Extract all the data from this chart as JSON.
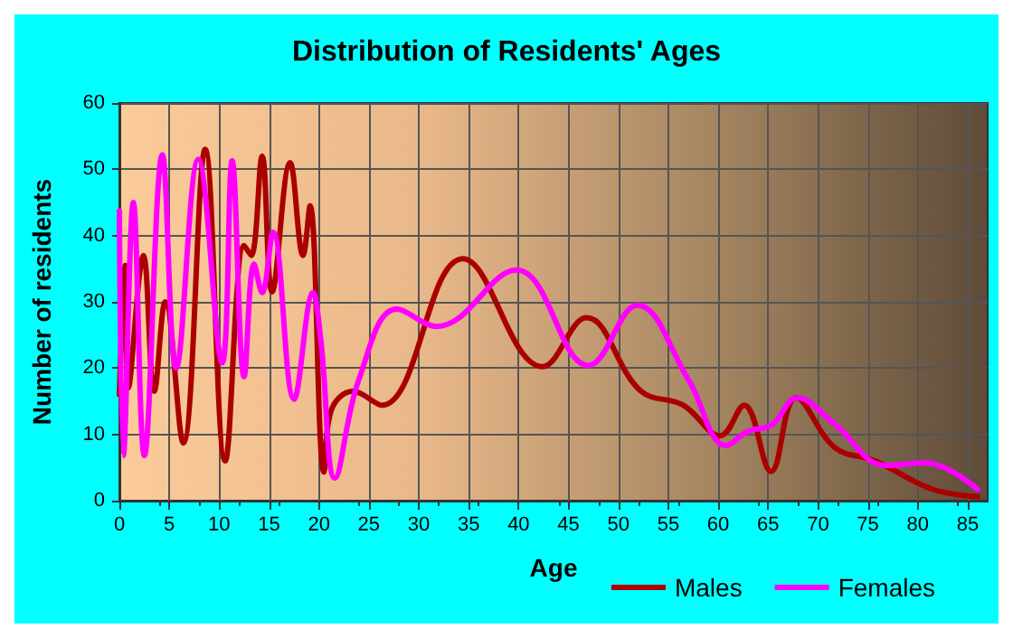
{
  "chart_data": {
    "type": "line",
    "title": "Distribution of Residents' Ages",
    "xlabel": "Age",
    "ylabel": "Number of residents",
    "xlim": [
      0,
      87
    ],
    "xticks": [
      0,
      5,
      10,
      15,
      20,
      25,
      30,
      35,
      40,
      45,
      50,
      55,
      60,
      65,
      70,
      75,
      80,
      85
    ],
    "ylim": [
      0,
      60
    ],
    "yticks": [
      0,
      10,
      20,
      30,
      40,
      50,
      60
    ],
    "grid": true,
    "legend": "bottom right",
    "marker": "none",
    "line_style": "solid",
    "series": [
      {
        "name": "Males",
        "color": "#aa0000",
        "x": [
          0,
          0.6,
          0.9,
          2.4,
          3.5,
          4.6,
          6.4,
          8.6,
          10.6,
          12.5,
          13.2,
          14.3,
          15.3,
          17.1,
          18.4,
          19.1,
          20.5,
          21.2,
          23.4,
          26.3,
          34.4,
          42.4,
          46.8,
          52.2,
          56.5,
          60.2,
          62.6,
          65.3,
          67.8,
          71.7,
          75.7,
          81.5,
          86
        ],
        "values": [
          16,
          35.5,
          17,
          37,
          16.5,
          30,
          8.7,
          53,
          6,
          38.5,
          37,
          52,
          31.5,
          51,
          37,
          44.5,
          4.3,
          13.5,
          16.5,
          14.4,
          36.5,
          20.2,
          27.6,
          16.6,
          14.4,
          9.8,
          14.4,
          4.4,
          15.5,
          8,
          6,
          1.7,
          0.6
        ]
      },
      {
        "name": "Females",
        "color": "#ff00ff",
        "x": [
          0,
          0.4,
          1.4,
          2.5,
          4.3,
          5.7,
          7.9,
          10.3,
          11.3,
          12.5,
          13.5,
          14.3,
          15.4,
          17.5,
          19.4,
          20.2,
          21.6,
          24,
          27.8,
          31.8,
          39.8,
          47,
          51.9,
          57,
          60.8,
          62.9,
          65.4,
          67.9,
          71.7,
          76.8,
          80.8,
          86
        ],
        "values": [
          43.7,
          6.8,
          45,
          6.8,
          52.2,
          20,
          51.5,
          20.8,
          51.3,
          18.7,
          35.7,
          31.4,
          40.5,
          15.3,
          31.4,
          24,
          3.4,
          18.3,
          28.9,
          26.3,
          34.8,
          20.4,
          29.5,
          18.3,
          8.3,
          10.4,
          11.5,
          15.5,
          11.5,
          5.3,
          5.7,
          1.7
        ]
      }
    ]
  }
}
